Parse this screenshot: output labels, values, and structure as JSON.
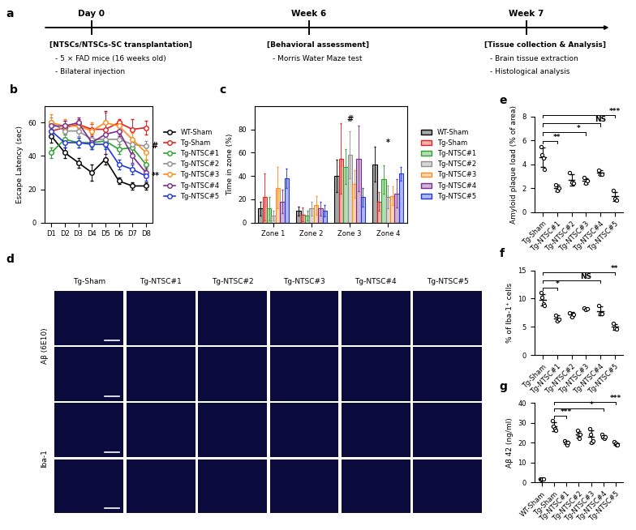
{
  "timeline": {
    "panel_label": "a",
    "events": [
      {
        "label": "Day 0",
        "title": "[NTSCs/NTSCs-SC transplantation]",
        "items": [
          "- 5 × FAD mice (16 weeks old)",
          "- Bilateral injection"
        ]
      },
      {
        "label": "Week 6",
        "title": "[Behavioral assessment]",
        "items": [
          "- Morris Water Maze test"
        ]
      },
      {
        "label": "Week 7",
        "title": "[Tissue collection & Analysis]",
        "items": [
          "- Brain tissue extraction",
          "- Histological analysis"
        ]
      }
    ]
  },
  "chart_data": [
    {
      "panel_label": "b",
      "type": "line",
      "y_label": "Escape Latency (sec)",
      "categories": [
        "D1",
        "D2",
        "D3",
        "D4",
        "D5",
        "D6",
        "D7",
        "D8"
      ],
      "ylim": [
        0,
        70
      ],
      "yticks": [
        0,
        20,
        40,
        60
      ],
      "legend": "right",
      "marker": "circle",
      "series": [
        {
          "name": "WT-Sham",
          "color": "#000000",
          "values": [
            52,
            42,
            36,
            30,
            38,
            25,
            22,
            22
          ],
          "errors": [
            4,
            3,
            3,
            5,
            3,
            2,
            2,
            2
          ]
        },
        {
          "name": "Tg-Sham",
          "color": "#e3211c",
          "values": [
            55,
            57,
            59,
            56,
            56,
            60,
            56,
            57
          ],
          "errors": [
            4,
            4,
            3,
            3,
            3,
            2,
            6,
            4
          ]
        },
        {
          "name": "Tg-NTSC#1",
          "color": "#2ca02c",
          "values": [
            42,
            50,
            48,
            48,
            49,
            44,
            45,
            35
          ],
          "errors": [
            3,
            3,
            3,
            3,
            4,
            3,
            3,
            3
          ]
        },
        {
          "name": "Tg-NTSC#2",
          "color": "#8f8f8f",
          "values": [
            60,
            55,
            55,
            50,
            50,
            50,
            47,
            46
          ],
          "errors": [
            3,
            4,
            3,
            4,
            3,
            3,
            3,
            3
          ]
        },
        {
          "name": "Tg-NTSC#3",
          "color": "#ff8c1a",
          "values": [
            60,
            58,
            58,
            55,
            60,
            58,
            50,
            42
          ],
          "errors": [
            5,
            4,
            3,
            5,
            6,
            3,
            4,
            4
          ]
        },
        {
          "name": "Tg-NTSC#4",
          "color": "#7a2a8f",
          "values": [
            58,
            58,
            60,
            48,
            53,
            55,
            40,
            30
          ],
          "errors": [
            3,
            3,
            3,
            4,
            14,
            3,
            4,
            3
          ]
        },
        {
          "name": "Tg-NTSC#5",
          "color": "#1f35e0",
          "values": [
            55,
            48,
            48,
            47,
            47,
            35,
            32,
            28
          ],
          "errors": [
            3,
            3,
            3,
            3,
            3,
            3,
            3,
            3
          ]
        }
      ],
      "annotations": [
        {
          "text": "#",
          "series": "Tg-NTSC#2",
          "category": "D8"
        },
        {
          "text": "**",
          "series": "Tg-NTSC#5",
          "category": "D8"
        }
      ]
    },
    {
      "panel_label": "c",
      "type": "bar",
      "y_label": "Time in zone (%)",
      "categories": [
        "Zone 1",
        "Zone 2",
        "Zone 3",
        "Zone 4"
      ],
      "ylim": [
        0,
        100
      ],
      "yticks": [
        0,
        20,
        40,
        60,
        80
      ],
      "legend": "right",
      "series": [
        {
          "name": "WT-Sham",
          "color": "#000000",
          "values": [
            12,
            10,
            40,
            50
          ],
          "errors": [
            6,
            4,
            14,
            15
          ]
        },
        {
          "name": "Tg-Sham",
          "color": "#e3211c",
          "values": [
            22,
            7,
            55,
            18
          ],
          "errors": [
            20,
            6,
            30,
            8
          ]
        },
        {
          "name": "Tg-NTSC#1",
          "color": "#2ca02c",
          "values": [
            12,
            6,
            48,
            37
          ],
          "errors": [
            10,
            4,
            15,
            12
          ]
        },
        {
          "name": "Tg-NTSC#2",
          "color": "#8f8f8f",
          "values": [
            6,
            12,
            58,
            22
          ],
          "errors": [
            4,
            6,
            20,
            10
          ]
        },
        {
          "name": "Tg-NTSC#3",
          "color": "#ff8c1a",
          "values": [
            30,
            15,
            33,
            23
          ],
          "errors": [
            18,
            8,
            12,
            8
          ]
        },
        {
          "name": "Tg-NTSC#4",
          "color": "#7a2a8f",
          "values": [
            18,
            12,
            55,
            25
          ],
          "errors": [
            10,
            6,
            28,
            12
          ]
        },
        {
          "name": "Tg-NTSC#5",
          "color": "#1f35e0",
          "values": [
            38,
            10,
            22,
            42
          ],
          "errors": [
            8,
            5,
            8,
            6
          ]
        }
      ],
      "annotations": [
        {
          "text": "#",
          "category": "Zone 3"
        },
        {
          "text": "*",
          "category": "Zone 4"
        }
      ]
    },
    {
      "panel_label": "e",
      "type": "dot",
      "y_label": "Amyloid plaque load (% of area)",
      "categories": [
        "Tg-Sham",
        "Tg-NTSC#1",
        "Tg-NTSC#2",
        "Tg-NTSC#3",
        "Tg-NTSC#4",
        "Tg-NTSC#5"
      ],
      "values": [
        4.6,
        2.0,
        2.7,
        2.6,
        3.3,
        1.3
      ],
      "errors": [
        0.8,
        0.25,
        0.5,
        0.25,
        0.2,
        0.4
      ],
      "points": [
        [
          5.5,
          4.8,
          4.5,
          3.6
        ],
        [
          2.3,
          1.8,
          2.0
        ],
        [
          3.3,
          2.5,
          2.4
        ],
        [
          2.9,
          2.4,
          2.6
        ],
        [
          3.5,
          3.2,
          3.2
        ],
        [
          1.8,
          1.1,
          1.0
        ]
      ],
      "color": "#000000",
      "ylim": [
        0,
        8
      ],
      "yticks": [
        0,
        2,
        4,
        6,
        8
      ],
      "annotations": [
        {
          "text": "**",
          "from": "Tg-Sham",
          "to": [
            "Tg-NTSC#1"
          ]
        },
        {
          "text": "*",
          "from": "Tg-Sham",
          "to": [
            "Tg-NTSC#2",
            "Tg-NTSC#3"
          ]
        },
        {
          "text": "NS",
          "from": "Tg-Sham",
          "to": [
            "Tg-NTSC#4"
          ]
        },
        {
          "text": "***",
          "from": "Tg-Sham",
          "to": [
            "Tg-NTSC#5"
          ]
        }
      ]
    },
    {
      "panel_label": "f",
      "type": "dot",
      "y_label": "% of Iba-1⁺ cells",
      "categories": [
        "Tg-Sham",
        "Tg-NTSC#1",
        "Tg-NTSC#2",
        "Tg-NTSC#3",
        "Tg-NTSC#4",
        "Tg-NTSC#5"
      ],
      "values": [
        9.8,
        6.5,
        7.2,
        8.2,
        7.8,
        5.0
      ],
      "errors": [
        1.0,
        0.5,
        0.4,
        0.2,
        0.8,
        0.5
      ],
      "points": [
        [
          11.0,
          10.2,
          9.0,
          8.8
        ],
        [
          7.0,
          6.0,
          6.4
        ],
        [
          7.5,
          6.8,
          7.2
        ],
        [
          8.4,
          8.0,
          8.2
        ],
        [
          8.8,
          7.4,
          7.3
        ],
        [
          5.6,
          4.8,
          4.6
        ]
      ],
      "color": "#000000",
      "ylim": [
        0,
        15
      ],
      "yticks": [
        0,
        5,
        10,
        15
      ],
      "annotations": [
        {
          "text": "*",
          "from": "Tg-Sham",
          "to": [
            "Tg-NTSC#1"
          ]
        },
        {
          "text": "NS",
          "from": "Tg-Sham",
          "to": [
            "Tg-NTSC#2",
            "Tg-NTSC#3",
            "Tg-NTSC#4"
          ]
        },
        {
          "text": "**",
          "from": "Tg-Sham",
          "to": [
            "Tg-NTSC#5"
          ]
        }
      ]
    },
    {
      "panel_label": "g",
      "type": "dot",
      "y_label": "Aβ 42 (ng/ml)",
      "categories": [
        "WT-Sham",
        "Tg-Sham",
        "Tg-NTSC#1",
        "Tg-NTSC#2",
        "Tg-NTSC#3",
        "Tg-NTSC#4",
        "Tg-NTSC#5"
      ],
      "values": [
        1.5,
        28,
        20,
        24,
        23,
        23,
        19.5
      ],
      "errors": [
        0.25,
        2.2,
        0.8,
        1.6,
        3.2,
        0.8,
        0.7
      ],
      "points": [
        [
          1.5,
          1.2,
          1.8,
          1.5
        ],
        [
          31,
          28,
          27,
          26
        ],
        [
          21,
          20,
          19,
          20
        ],
        [
          26,
          24,
          22,
          24
        ],
        [
          27,
          24,
          20,
          21
        ],
        [
          24,
          23,
          22,
          23
        ],
        [
          20.5,
          19.5,
          19,
          19
        ]
      ],
      "color": "#000000",
      "ylim": [
        0,
        40
      ],
      "yticks": [
        0,
        10,
        20,
        30,
        40
      ],
      "annotations": [
        {
          "text": "***",
          "from": "Tg-Sham",
          "to": [
            "Tg-NTSC#1"
          ]
        },
        {
          "text": "*",
          "from": "Tg-Sham",
          "to": [
            "Tg-NTSC#2",
            "Tg-NTSC#3",
            "Tg-NTSC#4"
          ]
        },
        {
          "text": "***",
          "from": "Tg-Sham",
          "to": [
            "Tg-NTSC#5"
          ]
        }
      ]
    }
  ],
  "micrographs": {
    "panel_label": "d",
    "columns": [
      "Tg-Sham",
      "Tg-NTSC#1",
      "Tg-NTSC#2",
      "Tg-NTSC#3",
      "Tg-NTSC#4",
      "Tg-NTSC#5"
    ],
    "rows": [
      "Aβ (6E10)",
      "Iba-1"
    ]
  }
}
